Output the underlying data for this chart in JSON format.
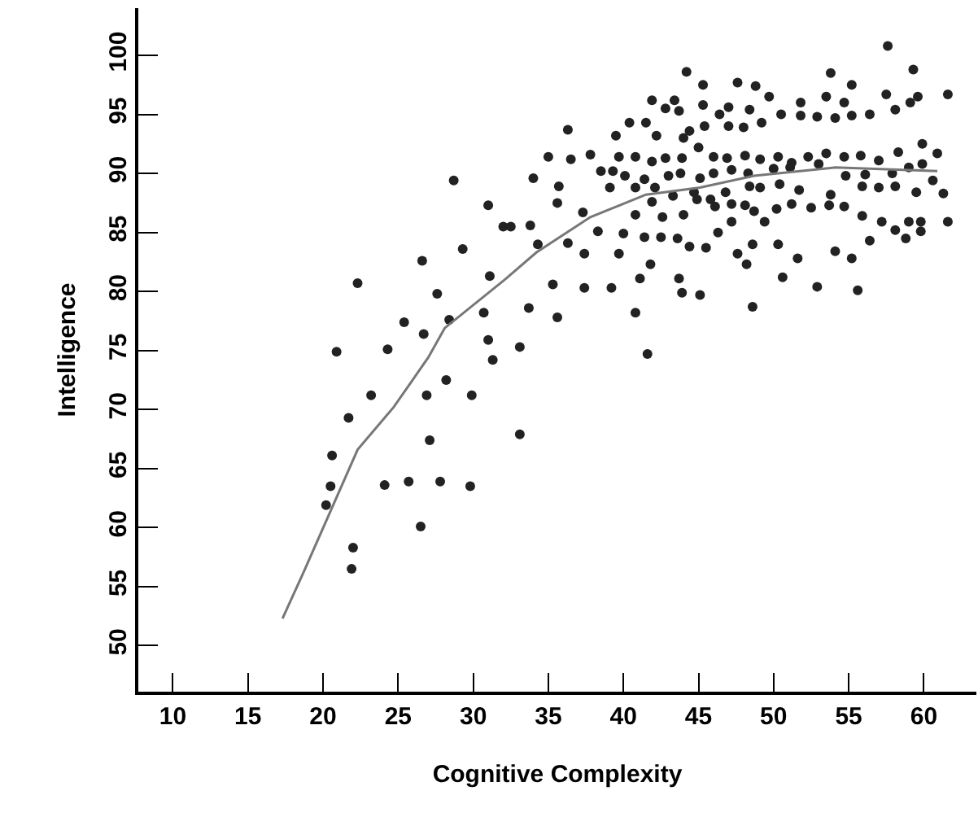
{
  "chart_data": {
    "type": "scatter",
    "xlabel": "Cognitive Complexity",
    "ylabel": "Intelligence",
    "xlim": [
      7.7,
      63.5
    ],
    "ylim": [
      46.1,
      104
    ],
    "xticks": [
      10,
      15,
      20,
      25,
      30,
      35,
      40,
      45,
      50,
      55,
      60
    ],
    "yticks": [
      50,
      55,
      60,
      65,
      70,
      75,
      80,
      85,
      90,
      95,
      100
    ],
    "series": [
      {
        "color": "#222222",
        "marker": "circle",
        "x": [
          22.3,
          20.9,
          24.3,
          25.4,
          26.7,
          26.6,
          27.6,
          28.4,
          28.7,
          29.3,
          30.7,
          31.0,
          31.3,
          31.1,
          31.0,
          32.0,
          32.5,
          33.8,
          34.0,
          33.7,
          33.1,
          34.3,
          23.2,
          21.7,
          20.6,
          20.5,
          20.2,
          22.0,
          21.9,
          24.1,
          25.7,
          26.5,
          26.9,
          27.1,
          28.2,
          27.8,
          29.8,
          29.9,
          33.1,
          57.6,
          44.2,
          45.3,
          47.6,
          48.8,
          49.7,
          53.8,
          55.2,
          59.3,
          61.6,
          41.9,
          43.4,
          42.8,
          43.7,
          45.3,
          46.4,
          47.0,
          48.4,
          51.8,
          53.5,
          54.7,
          57.5,
          59.1,
          59.6,
          36.3,
          39.5,
          40.4,
          41.5,
          42.2,
          44.0,
          44.4,
          45.4,
          47.0,
          48.0,
          49.2,
          50.5,
          51.8,
          52.9,
          54.1,
          55.2,
          56.4,
          58.1,
          35.0,
          36.5,
          37.8,
          39.7,
          40.8,
          41.9,
          42.8,
          43.9,
          45.0,
          46.0,
          46.9,
          48.1,
          49.1,
          50.3,
          51.2,
          52.3,
          53.5,
          54.7,
          55.8,
          57.0,
          58.3,
          59.9,
          60.9,
          38.5,
          39.3,
          40.1,
          41.4,
          43.0,
          43.8,
          45.1,
          46.0,
          47.2,
          48.3,
          50.0,
          51.1,
          53.0,
          54.8,
          56.1,
          57.9,
          59.0,
          59.9,
          35.7,
          39.1,
          40.8,
          42.1,
          43.3,
          44.7,
          45.8,
          46.8,
          48.4,
          49.1,
          50.4,
          51.7,
          53.8,
          55.9,
          57.0,
          58.1,
          59.5,
          60.6,
          61.3,
          35.6,
          37.3,
          38.3,
          40.8,
          41.9,
          42.6,
          44.0,
          44.9,
          46.1,
          47.2,
          48.1,
          48.7,
          50.2,
          51.2,
          52.5,
          53.7,
          54.7,
          55.9,
          57.2,
          58.1,
          59.0,
          59.8,
          61.6,
          36.3,
          37.4,
          39.7,
          40.0,
          41.4,
          42.5,
          43.6,
          44.4,
          45.5,
          46.3,
          47.2,
          47.6,
          48.6,
          49.4,
          50.3,
          51.6,
          54.1,
          55.2,
          56.4,
          58.8,
          59.8,
          35.3,
          37.4,
          39.2,
          41.1,
          41.8,
          43.7,
          43.9,
          45.1,
          48.2,
          50.6,
          52.9,
          55.6,
          35.6,
          40.8,
          48.6,
          41.6
        ],
        "values": [
          80.7,
          74.9,
          75.1,
          77.4,
          76.4,
          82.6,
          79.8,
          77.6,
          89.4,
          83.6,
          78.2,
          75.9,
          74.2,
          81.3,
          87.3,
          85.5,
          85.5,
          85.6,
          89.6,
          78.6,
          75.3,
          84.0,
          71.2,
          69.3,
          66.1,
          63.5,
          61.9,
          58.3,
          56.5,
          63.6,
          63.9,
          60.1,
          71.2,
          67.4,
          72.5,
          63.9,
          63.5,
          71.2,
          67.9,
          100.8,
          98.6,
          97.5,
          97.7,
          97.4,
          96.5,
          98.5,
          97.5,
          98.8,
          96.7,
          96.2,
          96.2,
          95.5,
          95.3,
          95.8,
          95.0,
          95.6,
          95.4,
          96.0,
          96.5,
          96.0,
          96.7,
          96.0,
          96.5,
          93.7,
          93.2,
          94.3,
          94.3,
          93.2,
          93.0,
          93.6,
          94.0,
          94.0,
          93.9,
          94.3,
          95.0,
          94.9,
          94.8,
          94.7,
          94.9,
          95.0,
          95.4,
          91.4,
          91.2,
          91.6,
          91.4,
          91.4,
          91.0,
          91.3,
          91.3,
          92.2,
          91.4,
          91.3,
          91.5,
          91.2,
          91.4,
          90.9,
          91.4,
          91.7,
          91.4,
          91.5,
          91.1,
          91.8,
          92.5,
          91.7,
          90.2,
          90.2,
          89.8,
          89.5,
          89.8,
          90.0,
          89.6,
          90.0,
          90.3,
          90.0,
          90.4,
          90.5,
          90.8,
          89.8,
          89.9,
          90.0,
          90.5,
          90.8,
          88.9,
          88.8,
          88.8,
          88.8,
          88.1,
          88.4,
          87.8,
          88.4,
          88.9,
          88.8,
          89.1,
          88.6,
          88.2,
          88.9,
          88.8,
          88.9,
          88.4,
          89.4,
          88.3,
          87.5,
          86.7,
          85.1,
          86.5,
          87.6,
          86.3,
          86.5,
          87.8,
          87.2,
          87.4,
          87.3,
          86.8,
          87.0,
          87.4,
          87.1,
          87.3,
          87.2,
          86.4,
          85.9,
          85.2,
          85.9,
          85.1,
          85.9,
          84.1,
          83.2,
          83.2,
          84.9,
          84.6,
          84.6,
          84.5,
          83.8,
          83.7,
          85.0,
          85.9,
          83.2,
          84.0,
          85.9,
          84.0,
          82.8,
          83.4,
          82.8,
          84.3,
          84.5,
          85.9,
          80.6,
          80.3,
          80.3,
          81.1,
          82.3,
          81.1,
          79.9,
          79.7,
          82.3,
          81.2,
          80.4,
          80.1,
          77.8,
          78.2,
          78.7,
          74.7
        ]
      },
      {
        "type": "line",
        "color": "#777777",
        "marker": "none",
        "line_style": "solid",
        "x": [
          17.3,
          18.7,
          22.3,
          24.7,
          27.0,
          28.1,
          32.1,
          34.2,
          37.8,
          41.5,
          45.1,
          48.7,
          54.1,
          60.9
        ],
        "values": [
          52.3,
          56.2,
          66.6,
          70.2,
          74.4,
          76.9,
          81.0,
          83.3,
          86.3,
          88.2,
          88.8,
          89.8,
          90.5,
          90.2
        ]
      }
    ]
  }
}
